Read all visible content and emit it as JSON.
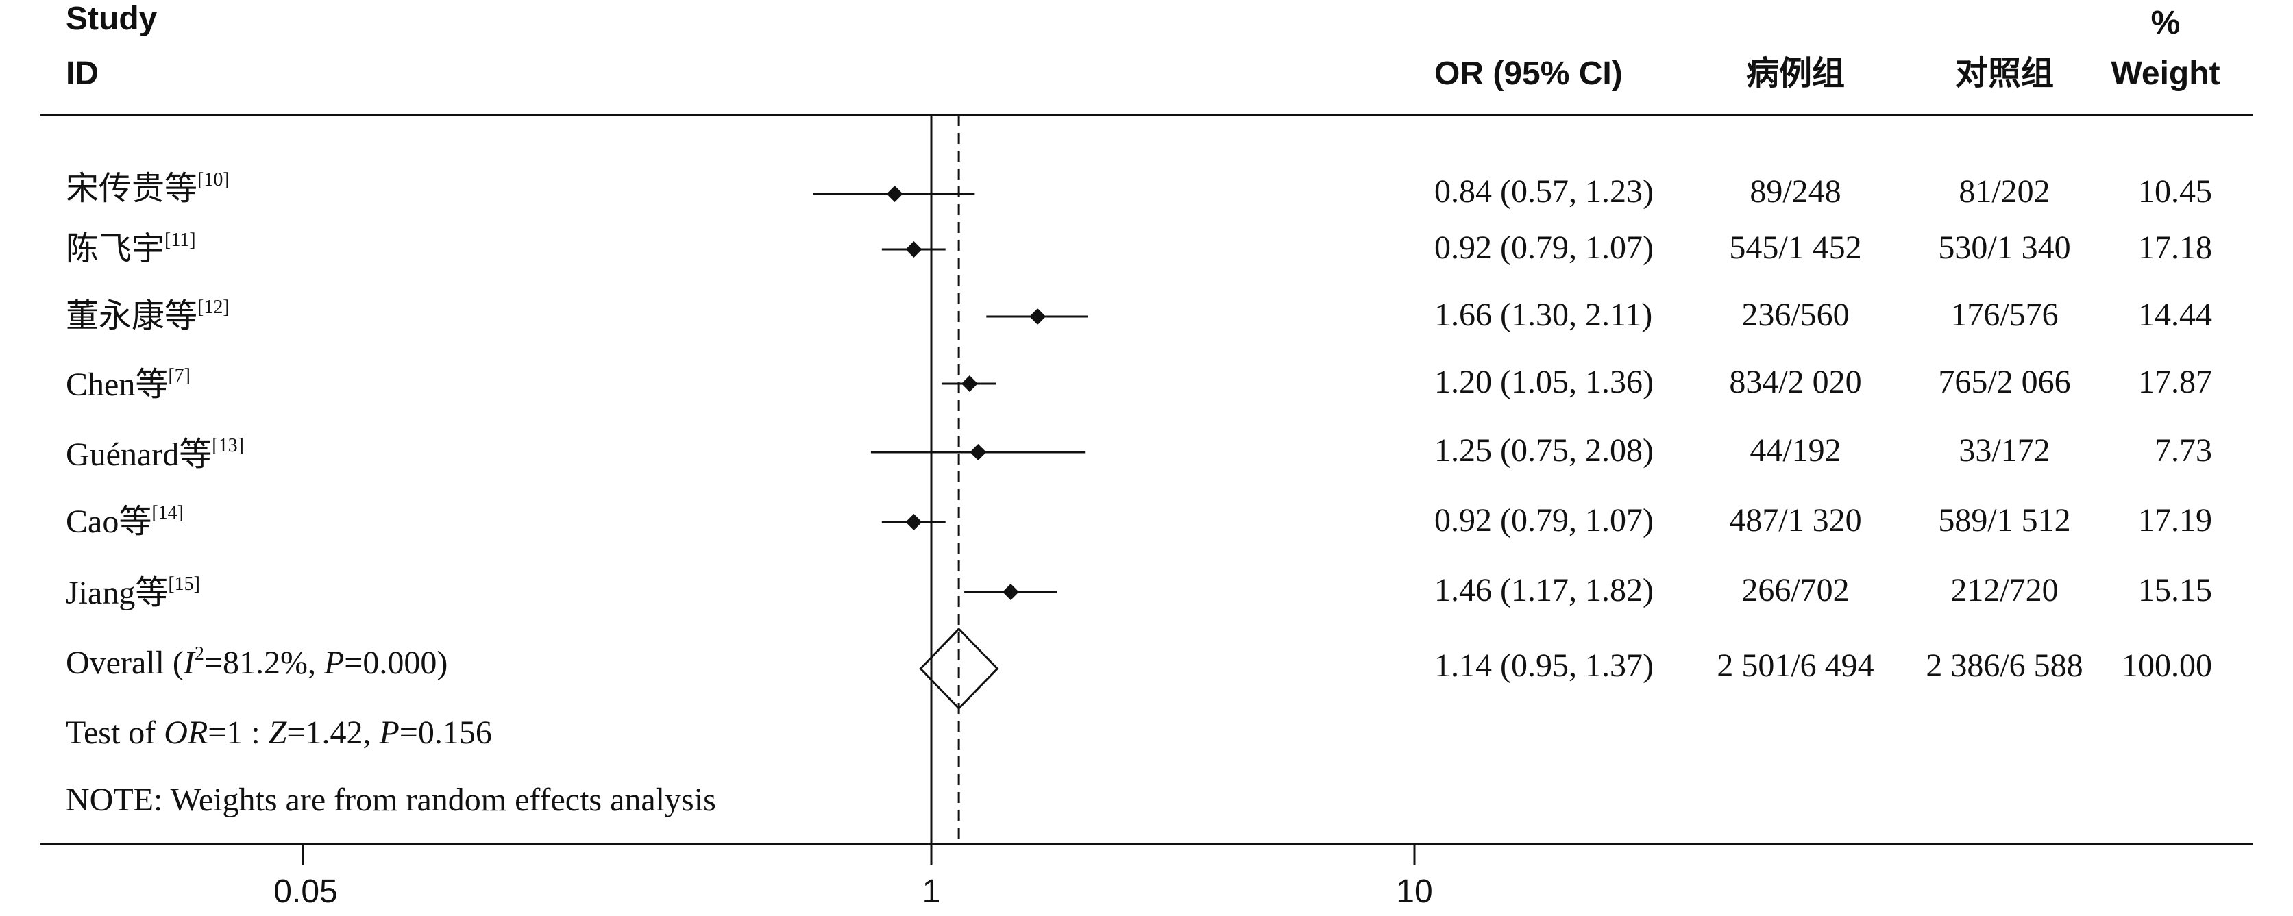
{
  "header": {
    "study_line1": "Study",
    "study_line2": "ID",
    "or_label": "OR (95% CI)",
    "case_label": "病例组",
    "control_label": "对照组",
    "weight_line1": "%",
    "weight_line2": "Weight"
  },
  "studies": [
    {
      "name": "宋传贵等",
      "ref": "[10]",
      "or_text": "0.84 (0.57, 1.23)",
      "case": "89/248",
      "control": "81/202",
      "weight": "10.45"
    },
    {
      "name": "陈飞宇",
      "ref": "[11]",
      "or_text": "0.92 (0.79, 1.07)",
      "case": "545/1 452",
      "control": "530/1 340",
      "weight": "17.18"
    },
    {
      "name": "董永康等",
      "ref": "[12]",
      "or_text": "1.66 (1.30, 2.11)",
      "case": "236/560",
      "control": "176/576",
      "weight": "14.44"
    },
    {
      "name": "Chen等",
      "ref": "[7]",
      "or_text": "1.20 (1.05, 1.36)",
      "case": "834/2 020",
      "control": "765/2 066",
      "weight": "17.87"
    },
    {
      "name": "Guénard等",
      "ref": "[13]",
      "or_text": "1.25 (0.75, 2.08)",
      "case": "44/192",
      "control": "33/172",
      "weight": "7.73"
    },
    {
      "name": "Cao等",
      "ref": "[14]",
      "or_text": "0.92 (0.79, 1.07)",
      "case": "487/1 320",
      "control": "589/1 512",
      "weight": "17.19"
    },
    {
      "name": "Jiang等",
      "ref": "[15]",
      "or_text": "1.46 (1.17, 1.82)",
      "case": "266/702",
      "control": "212/720",
      "weight": "15.15"
    }
  ],
  "overall": {
    "label_prefix": "Overall  (",
    "i2_symbol": "I",
    "i2_sup": "2",
    "i2_value": "=81.2%, ",
    "p_symbol": "P",
    "p_value": "=0.000)",
    "or_text": "1.14 (0.95, 1.37)",
    "case": "2 501/6 494",
    "control": "2 386/6 588",
    "weight": "100.00"
  },
  "test_line": {
    "prefix": "Test of ",
    "or_symbol": "OR",
    "mid": "=1 : ",
    "z_symbol": "Z",
    "z_value": "=1.42, ",
    "p_symbol": "P",
    "p_value": "=0.156"
  },
  "note": "NOTE: Weights are from random effects analysis",
  "chart_data": {
    "type": "forest",
    "x_scale": "log",
    "x_ticks": [
      "0.05",
      "1",
      "10"
    ],
    "x_tick_values": [
      0.05,
      1,
      10
    ],
    "null_line": 1,
    "pooled_line": 1.14,
    "studies": [
      {
        "label": "宋传贵等",
        "or": 0.84,
        "lo": 0.57,
        "hi": 1.23,
        "weight": 10.45
      },
      {
        "label": "陈飞宇",
        "or": 0.92,
        "lo": 0.79,
        "hi": 1.07,
        "weight": 17.18
      },
      {
        "label": "董永康等",
        "or": 1.66,
        "lo": 1.3,
        "hi": 2.11,
        "weight": 14.44
      },
      {
        "label": "Chen等",
        "or": 1.2,
        "lo": 1.05,
        "hi": 1.36,
        "weight": 17.87
      },
      {
        "label": "Guénard等",
        "or": 1.25,
        "lo": 0.75,
        "hi": 2.08,
        "weight": 7.73
      },
      {
        "label": "Cao等",
        "or": 0.92,
        "lo": 0.79,
        "hi": 1.07,
        "weight": 17.19
      },
      {
        "label": "Jiang等",
        "or": 1.46,
        "lo": 1.17,
        "hi": 1.82,
        "weight": 15.15
      }
    ],
    "overall": {
      "or": 1.14,
      "lo": 0.95,
      "hi": 1.37,
      "weight": 100.0
    }
  }
}
